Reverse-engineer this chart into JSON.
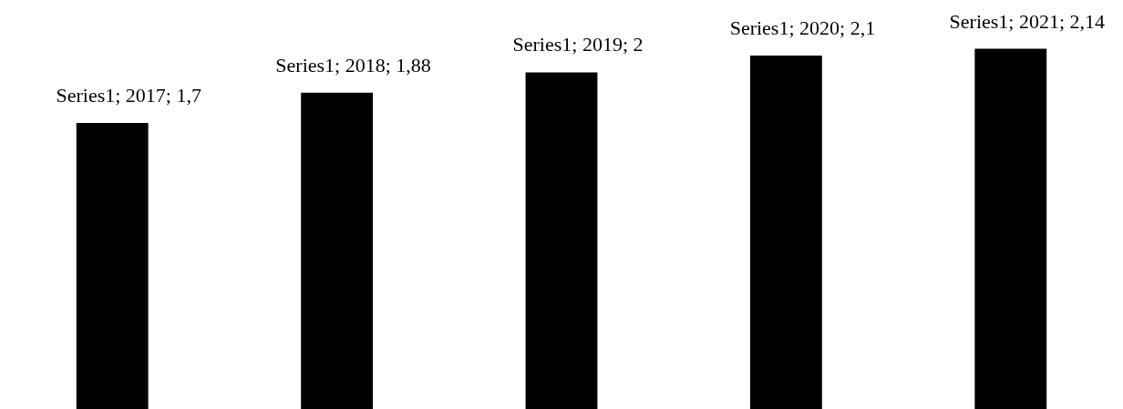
{
  "chart_data": {
    "type": "bar",
    "categories": [
      null,
      null,
      null,
      null,
      null
    ],
    "values": [
      1.7,
      1.88,
      2,
      2.1,
      2.14
    ],
    "color": "#000000",
    "value_labels": [
      "Series1; 2017; 1,7",
      "Series1; 2018; 1,88",
      "Series1; 2019; 2",
      "Series1; 2020; 2,1",
      "Series1; 2021; 2,14"
    ],
    "ylim": [
      0,
      2.43
    ],
    "tick_labels": false,
    "grid": false
  }
}
